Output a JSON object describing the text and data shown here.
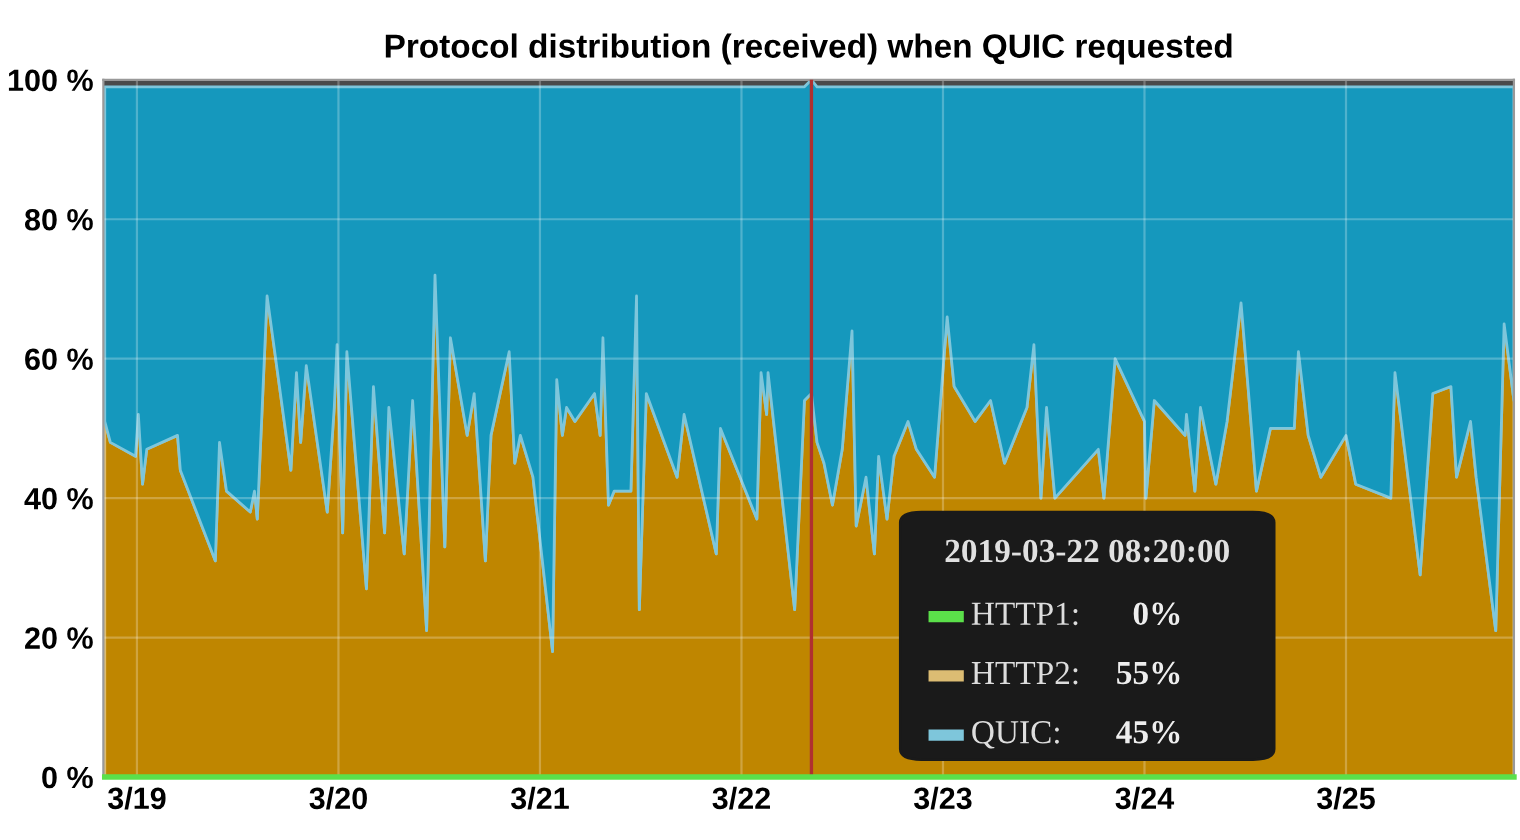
{
  "chart_data": {
    "type": "area",
    "stacked": true,
    "title": "Protocol distribution (received) when QUIC requested",
    "x": [
      "2019-03-18T20:10",
      "2019-03-18T20:50",
      "2019-03-18T23:50",
      "2019-03-19T00:10",
      "2019-03-19T00:40",
      "2019-03-19T01:10",
      "2019-03-19T04:50",
      "2019-03-19T05:10",
      "2019-03-19T09:20",
      "2019-03-19T09:50",
      "2019-03-19T10:40",
      "2019-03-19T13:30",
      "2019-03-19T14:00",
      "2019-03-19T14:20",
      "2019-03-19T15:30",
      "2019-03-19T18:20",
      "2019-03-19T19:00",
      "2019-03-19T19:30",
      "2019-03-19T20:10",
      "2019-03-19T22:40",
      "2019-03-19T23:30",
      "2019-03-19T23:50",
      "2019-03-20T00:30",
      "2019-03-20T01:00",
      "2019-03-20T03:20",
      "2019-03-20T04:10",
      "2019-03-20T05:30",
      "2019-03-20T06:00",
      "2019-03-20T07:50",
      "2019-03-20T08:50",
      "2019-03-20T10:30",
      "2019-03-20T11:30",
      "2019-03-20T12:40",
      "2019-03-20T13:20",
      "2019-03-20T15:20",
      "2019-03-20T16:10",
      "2019-03-20T17:30",
      "2019-03-20T18:10",
      "2019-03-20T20:20",
      "2019-03-20T21:00",
      "2019-03-20T21:40",
      "2019-03-20T23:10",
      "2019-03-21T01:30",
      "2019-03-21T02:00",
      "2019-03-21T02:40",
      "2019-03-21T03:10",
      "2019-03-21T04:10",
      "2019-03-21T06:30",
      "2019-03-21T07:10",
      "2019-03-21T07:30",
      "2019-03-21T08:10",
      "2019-03-21T08:50",
      "2019-03-21T10:50",
      "2019-03-21T11:30",
      "2019-03-21T11:50",
      "2019-03-21T12:40",
      "2019-03-21T16:20",
      "2019-03-21T17:10",
      "2019-03-21T21:00",
      "2019-03-21T21:30",
      "2019-03-22T01:50",
      "2019-03-22T02:20",
      "2019-03-22T03:00",
      "2019-03-22T03:10",
      "2019-03-22T06:20",
      "2019-03-22T07:30",
      "2019-03-22T08:20",
      "2019-03-22T09:00",
      "2019-03-22T09:50",
      "2019-03-22T10:50",
      "2019-03-22T12:00",
      "2019-03-22T13:10",
      "2019-03-22T13:40",
      "2019-03-22T14:50",
      "2019-03-22T15:50",
      "2019-03-22T16:20",
      "2019-03-22T17:20",
      "2019-03-22T18:10",
      "2019-03-22T19:50",
      "2019-03-22T20:50",
      "2019-03-22T23:00",
      "2019-03-23T00:30",
      "2019-03-23T01:20",
      "2019-03-23T03:50",
      "2019-03-23T05:40",
      "2019-03-23T07:20",
      "2019-03-23T10:00",
      "2019-03-23T10:50",
      "2019-03-23T11:40",
      "2019-03-23T12:20",
      "2019-03-23T13:20",
      "2019-03-23T18:30",
      "2019-03-23T19:10",
      "2019-03-23T20:30",
      "2019-03-24T00:00",
      "2019-03-24T00:10",
      "2019-03-24T01:10",
      "2019-03-24T04:50",
      "2019-03-24T05:00",
      "2019-03-24T06:00",
      "2019-03-24T06:40",
      "2019-03-24T08:30",
      "2019-03-24T09:50",
      "2019-03-24T11:30",
      "2019-03-24T12:20",
      "2019-03-24T13:20",
      "2019-03-24T15:00",
      "2019-03-24T17:50",
      "2019-03-24T18:20",
      "2019-03-24T19:30",
      "2019-03-24T21:00",
      "2019-03-25T00:00",
      "2019-03-25T01:10",
      "2019-03-25T05:20",
      "2019-03-25T05:50",
      "2019-03-25T08:50",
      "2019-03-25T10:20",
      "2019-03-25T12:30",
      "2019-03-25T13:10",
      "2019-03-25T14:50",
      "2019-03-25T15:30",
      "2019-03-25T17:50",
      "2019-03-25T18:50",
      "2019-03-25T20:00"
    ],
    "series": [
      {
        "name": "HTTP1:",
        "type": "line",
        "color": "#5be04a",
        "values": [
          0,
          0,
          0,
          0,
          0,
          0,
          0,
          0,
          0,
          0,
          0,
          0,
          0,
          0,
          0,
          0,
          0,
          0,
          0,
          0,
          0,
          0,
          0,
          0,
          0,
          0,
          0,
          0,
          0,
          0,
          0,
          0,
          0,
          0,
          0,
          0,
          0,
          0,
          0,
          0,
          0,
          0,
          0,
          0,
          0,
          0,
          0,
          0,
          0,
          0,
          0,
          0,
          0,
          0,
          0,
          0,
          0,
          0,
          0,
          0,
          0,
          0,
          0,
          0,
          0,
          0,
          0,
          0,
          0,
          0,
          0,
          0,
          0,
          0,
          0,
          0,
          0,
          0,
          0,
          0,
          0,
          0,
          0,
          0,
          0,
          0,
          0,
          0,
          0,
          0,
          0,
          0,
          0,
          0,
          0,
          0,
          0,
          0,
          0,
          0,
          0,
          0,
          0,
          0,
          0,
          0,
          0,
          0,
          0,
          0,
          0,
          0,
          0,
          0,
          0,
          0,
          0,
          0,
          0,
          0,
          0,
          0,
          0,
          0
        ]
      },
      {
        "name": "HTTP2:",
        "color": "#bf8600",
        "values": [
          51,
          48,
          46,
          52,
          42,
          47,
          49,
          44,
          31,
          48,
          41,
          38,
          41,
          37,
          69,
          44,
          58,
          48,
          59,
          38,
          53,
          62,
          35,
          61,
          27,
          56,
          35,
          53,
          32,
          54,
          21,
          72,
          33,
          63,
          49,
          55,
          31,
          49,
          61,
          45,
          49,
          43,
          18,
          57,
          49,
          53,
          51,
          55,
          49,
          63,
          39,
          41,
          41,
          69,
          24,
          55,
          43,
          52,
          32,
          50,
          37,
          58,
          52,
          58,
          24,
          54,
          55,
          48,
          45,
          39,
          47,
          64,
          36,
          43,
          32,
          46,
          37,
          46,
          51,
          47,
          43,
          66,
          56,
          51,
          54,
          45,
          53,
          62,
          40,
          53,
          40,
          47,
          40,
          60,
          51,
          40,
          54,
          49,
          52,
          41,
          53,
          42,
          51,
          68,
          56,
          41,
          50,
          50,
          61,
          49,
          43,
          49,
          42,
          40,
          58,
          29,
          55,
          56,
          43,
          51,
          43,
          21,
          65,
          54
        ]
      },
      {
        "name": "QUIC:",
        "color": "#1598bd",
        "values": [
          48,
          51,
          53,
          47,
          57,
          52,
          50,
          55,
          68,
          51,
          58,
          61,
          58,
          62,
          30,
          55,
          41,
          51,
          40,
          61,
          46,
          37,
          64,
          38,
          72,
          43,
          64,
          46,
          67,
          45,
          78,
          27,
          66,
          36,
          50,
          44,
          68,
          50,
          38,
          54,
          50,
          56,
          81,
          42,
          50,
          46,
          48,
          44,
          50,
          36,
          60,
          58,
          58,
          30,
          75,
          44,
          56,
          47,
          67,
          49,
          62,
          41,
          47,
          41,
          75,
          45,
          45,
          51,
          54,
          60,
          52,
          35,
          63,
          56,
          67,
          53,
          62,
          53,
          48,
          52,
          56,
          33,
          43,
          48,
          45,
          54,
          46,
          37,
          59,
          46,
          59,
          52,
          59,
          39,
          48,
          59,
          45,
          50,
          47,
          58,
          46,
          57,
          48,
          31,
          43,
          58,
          49,
          49,
          38,
          50,
          56,
          50,
          57,
          59,
          41,
          70,
          44,
          43,
          56,
          48,
          56,
          78,
          34,
          45
        ]
      }
    ],
    "xlim": [
      "2019-03-18T20:00",
      "2019-03-25T20:00"
    ],
    "xticks": [
      {
        "value": "2019-03-19",
        "label": "3/19"
      },
      {
        "value": "2019-03-20",
        "label": "3/20"
      },
      {
        "value": "2019-03-21",
        "label": "3/21"
      },
      {
        "value": "2019-03-22",
        "label": "3/22"
      },
      {
        "value": "2019-03-23",
        "label": "3/23"
      },
      {
        "value": "2019-03-24",
        "label": "3/24"
      },
      {
        "value": "2019-03-25",
        "label": "3/25"
      }
    ],
    "ylim": [
      0,
      100
    ],
    "yticks": [
      {
        "value": 0,
        "label": "0 %"
      },
      {
        "value": 20,
        "label": "20 %"
      },
      {
        "value": 40,
        "label": "40 %"
      },
      {
        "value": 60,
        "label": "60 %"
      },
      {
        "value": 80,
        "label": "80 %"
      },
      {
        "value": 100,
        "label": "100 %"
      }
    ],
    "grid": true,
    "ref_lines": [
      {
        "axis": "x",
        "value": "2019-03-22T08:20",
        "color": "#b03030"
      }
    ],
    "legend": "bottom right",
    "legend_title": "2019-03-22 08:20:00",
    "annotations": [
      "0%",
      "55%",
      "45%"
    ]
  }
}
